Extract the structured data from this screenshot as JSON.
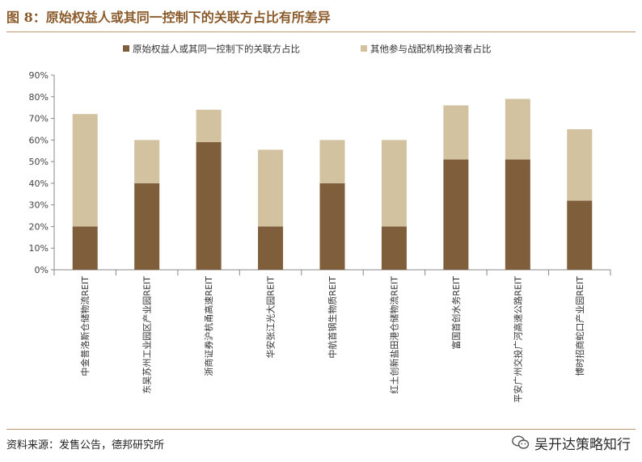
{
  "header": {
    "title": "图 8：原始权益人或其同一控制下的关联方占比有所差异"
  },
  "footer": {
    "source": "资料来源：发售公告，德邦研究所",
    "watermark": "吴开达策略知行"
  },
  "colors": {
    "accent": "#8a5a2b",
    "series_dark": "#7f5f3b",
    "series_light": "#d2c2a0",
    "axis": "#888888"
  },
  "chart_data": {
    "type": "bar",
    "stacked": true,
    "categories": [
      "中金普洛斯仓储物流REIT",
      "东吴苏州工业园区产业园REIT",
      "浙商证券沪杭甬高速REIT",
      "华安张江光大园REIT",
      "中航首钢生物质REIT",
      "红土创新盐田港仓储物流REIT",
      "富国首创水务REIT",
      "平安广州交投广河高速公路REIT",
      "博时招商蛇口产业园REIT"
    ],
    "series": [
      {
        "name": "原始权益人或其同一控制下的关联方占比",
        "values": [
          20,
          40,
          59,
          20,
          40,
          20,
          51,
          51,
          32
        ]
      },
      {
        "name": "其他参与战配机构投资者占比",
        "values": [
          52,
          20,
          15,
          35.5,
          20,
          40,
          25,
          28,
          33
        ]
      }
    ],
    "yticks": [
      "0%",
      "10%",
      "20%",
      "30%",
      "40%",
      "50%",
      "60%",
      "70%",
      "80%",
      "90%"
    ],
    "ylim": [
      0,
      90
    ],
    "grid": false,
    "legend_position": "top"
  }
}
